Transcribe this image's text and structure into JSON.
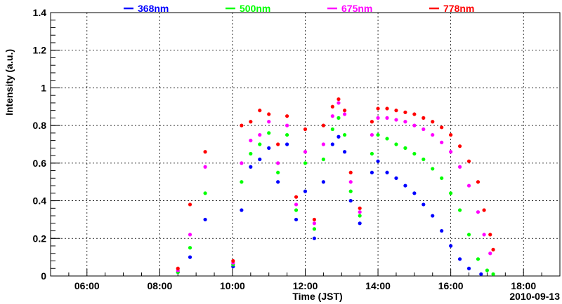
{
  "chart_data": {
    "type": "scatter",
    "title": "",
    "xlabel": "Time (JST)",
    "ylabel": "Intensity (a.u.)",
    "date_label": "2010-09-13",
    "xlim": [
      "05:00",
      "19:00"
    ],
    "ylim": [
      0,
      1.4
    ],
    "x_ticks": [
      "06:00",
      "08:00",
      "10:00",
      "12:00",
      "14:00",
      "16:00",
      "18:00"
    ],
    "y_ticks": [
      "0",
      "0.2",
      "0.4",
      "0.6",
      "0.8",
      "1",
      "1.2",
      "1.4"
    ],
    "grid": true,
    "legend_position": "top",
    "series": [
      {
        "name": "368nm",
        "color": "#0000ff",
        "points": [
          [
            "08:30",
            0.02
          ],
          [
            "08:50",
            0.1
          ],
          [
            "09:15",
            0.3
          ],
          [
            "10:01",
            0.05
          ],
          [
            "10:15",
            0.35
          ],
          [
            "10:30",
            0.58
          ],
          [
            "10:45",
            0.62
          ],
          [
            "11:00",
            0.68
          ],
          [
            "11:15",
            0.5
          ],
          [
            "11:30",
            0.7
          ],
          [
            "11:45",
            0.3
          ],
          [
            "12:00",
            0.45
          ],
          [
            "12:15",
            0.2
          ],
          [
            "12:30",
            0.5
          ],
          [
            "12:45",
            0.7
          ],
          [
            "12:55",
            0.74
          ],
          [
            "13:05",
            0.66
          ],
          [
            "13:15",
            0.4
          ],
          [
            "13:30",
            0.28
          ],
          [
            "13:50",
            0.55
          ],
          [
            "14:00",
            0.61
          ],
          [
            "14:15",
            0.55
          ],
          [
            "14:30",
            0.52
          ],
          [
            "14:45",
            0.48
          ],
          [
            "15:00",
            0.44
          ],
          [
            "15:15",
            0.38
          ],
          [
            "15:30",
            0.32
          ],
          [
            "15:45",
            0.24
          ],
          [
            "16:00",
            0.16
          ],
          [
            "16:15",
            0.09
          ],
          [
            "16:30",
            0.04
          ],
          [
            "16:50",
            0.01
          ]
        ]
      },
      {
        "name": "500nm",
        "color": "#00ff00",
        "points": [
          [
            "08:30",
            0.02
          ],
          [
            "08:50",
            0.15
          ],
          [
            "09:15",
            0.44
          ],
          [
            "10:01",
            0.06
          ],
          [
            "10:15",
            0.5
          ],
          [
            "10:30",
            0.65
          ],
          [
            "10:45",
            0.7
          ],
          [
            "11:00",
            0.76
          ],
          [
            "11:15",
            0.55
          ],
          [
            "11:30",
            0.75
          ],
          [
            "11:45",
            0.35
          ],
          [
            "12:00",
            0.6
          ],
          [
            "12:15",
            0.25
          ],
          [
            "12:30",
            0.62
          ],
          [
            "12:45",
            0.78
          ],
          [
            "12:55",
            0.84
          ],
          [
            "13:05",
            0.75
          ],
          [
            "13:15",
            0.45
          ],
          [
            "13:30",
            0.32
          ],
          [
            "13:50",
            0.65
          ],
          [
            "14:00",
            0.75
          ],
          [
            "14:15",
            0.73
          ],
          [
            "14:30",
            0.7
          ],
          [
            "14:45",
            0.68
          ],
          [
            "15:00",
            0.65
          ],
          [
            "15:15",
            0.62
          ],
          [
            "15:30",
            0.57
          ],
          [
            "15:45",
            0.52
          ],
          [
            "16:00",
            0.44
          ],
          [
            "16:15",
            0.35
          ],
          [
            "16:30",
            0.22
          ],
          [
            "16:45",
            0.09
          ],
          [
            "17:00",
            0.03
          ],
          [
            "17:10",
            0.01
          ]
        ]
      },
      {
        "name": "675nm",
        "color": "#ff00ff",
        "points": [
          [
            "08:30",
            0.03
          ],
          [
            "08:50",
            0.22
          ],
          [
            "09:15",
            0.58
          ],
          [
            "10:01",
            0.07
          ],
          [
            "10:15",
            0.6
          ],
          [
            "10:30",
            0.72
          ],
          [
            "10:45",
            0.75
          ],
          [
            "11:00",
            0.82
          ],
          [
            "11:15",
            0.6
          ],
          [
            "11:30",
            0.8
          ],
          [
            "11:45",
            0.38
          ],
          [
            "12:00",
            0.66
          ],
          [
            "12:15",
            0.28
          ],
          [
            "12:30",
            0.7
          ],
          [
            "12:45",
            0.85
          ],
          [
            "12:55",
            0.92
          ],
          [
            "13:05",
            0.86
          ],
          [
            "13:15",
            0.5
          ],
          [
            "13:30",
            0.34
          ],
          [
            "13:50",
            0.75
          ],
          [
            "14:00",
            0.84
          ],
          [
            "14:15",
            0.84
          ],
          [
            "14:30",
            0.83
          ],
          [
            "14:45",
            0.82
          ],
          [
            "15:00",
            0.8
          ],
          [
            "15:15",
            0.78
          ],
          [
            "15:30",
            0.75
          ],
          [
            "15:45",
            0.71
          ],
          [
            "16:00",
            0.66
          ],
          [
            "16:15",
            0.58
          ],
          [
            "16:30",
            0.48
          ],
          [
            "16:45",
            0.34
          ],
          [
            "16:55",
            0.22
          ],
          [
            "17:05",
            0.12
          ]
        ]
      },
      {
        "name": "778nm",
        "color": "#ff0000",
        "points": [
          [
            "08:30",
            0.04
          ],
          [
            "08:50",
            0.38
          ],
          [
            "09:15",
            0.66
          ],
          [
            "10:01",
            0.08
          ],
          [
            "10:15",
            0.8
          ],
          [
            "10:30",
            0.82
          ],
          [
            "10:45",
            0.88
          ],
          [
            "11:00",
            0.86
          ],
          [
            "11:15",
            0.7
          ],
          [
            "11:30",
            0.85
          ],
          [
            "11:45",
            0.42
          ],
          [
            "12:00",
            0.78
          ],
          [
            "12:15",
            0.3
          ],
          [
            "12:30",
            0.8
          ],
          [
            "12:45",
            0.9
          ],
          [
            "12:55",
            0.94
          ],
          [
            "13:05",
            0.88
          ],
          [
            "13:15",
            0.55
          ],
          [
            "13:30",
            0.36
          ],
          [
            "13:50",
            0.82
          ],
          [
            "14:00",
            0.89
          ],
          [
            "14:15",
            0.89
          ],
          [
            "14:30",
            0.88
          ],
          [
            "14:45",
            0.87
          ],
          [
            "15:00",
            0.86
          ],
          [
            "15:15",
            0.84
          ],
          [
            "15:30",
            0.82
          ],
          [
            "15:45",
            0.79
          ],
          [
            "16:00",
            0.75
          ],
          [
            "16:15",
            0.69
          ],
          [
            "16:30",
            0.61
          ],
          [
            "16:45",
            0.5
          ],
          [
            "16:55",
            0.35
          ],
          [
            "17:05",
            0.22
          ],
          [
            "17:10",
            0.14
          ]
        ]
      }
    ]
  }
}
